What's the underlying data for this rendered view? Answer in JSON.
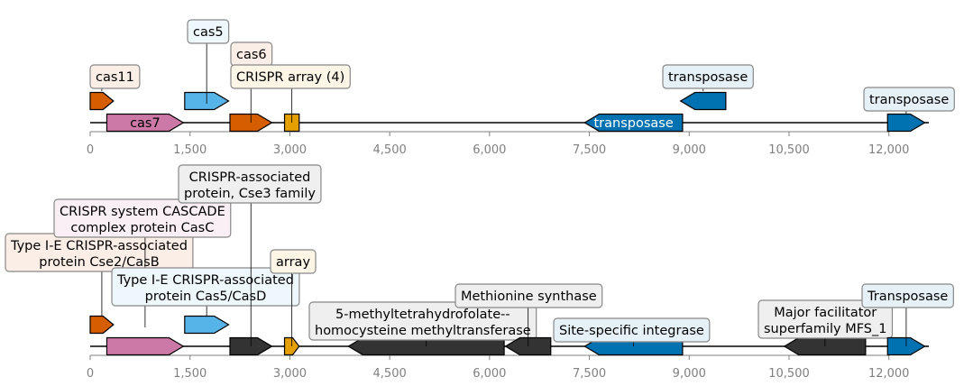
{
  "colors": {
    "cas11": "#d55e00",
    "cas7": "#cc79a7",
    "cas5": "#56b4e9",
    "cas6": "#d55e00",
    "crispr": "#e69f00",
    "transposase": "#0072b2",
    "other": "#333333",
    "backbone": "#000000",
    "tick": "#808080"
  },
  "axis": {
    "ticks": [
      "0",
      "1,500",
      "3,000",
      "4,500",
      "6,000",
      "7,500",
      "9,000",
      "10,500",
      "12,000"
    ],
    "tick_values": [
      0,
      1500,
      3000,
      4500,
      6000,
      7500,
      9000,
      10500,
      12000
    ],
    "xlim": [
      0,
      12600
    ]
  },
  "tracks": [
    {
      "name": "top",
      "genes": [
        {
          "label": "cas11",
          "start": 0,
          "end": 350,
          "strand": 1,
          "color": "#d55e00",
          "boxbg": "#fbeee6"
        },
        {
          "label": "cas7",
          "start": 250,
          "end": 1400,
          "strand": 1,
          "color": "#cc79a7",
          "inline": true
        },
        {
          "label": "cas5",
          "start": 1420,
          "end": 2080,
          "strand": 1,
          "color": "#56b4e9",
          "boxbg": "#eef7fc"
        },
        {
          "label": "cas6",
          "start": 2100,
          "end": 2730,
          "strand": 1,
          "color": "#d55e00",
          "boxbg": "#fbeee6"
        },
        {
          "label": "CRISPR array (4)",
          "start": 2920,
          "end": 3140,
          "strand": 0,
          "color": "#e69f00",
          "boxbg": "#fdf5e6"
        },
        {
          "label": "transposase",
          "start": 7430,
          "end": 8900,
          "strand": -1,
          "color": "#0072b2",
          "inline": true,
          "inline_color": "#ffffff"
        },
        {
          "label": "transposase",
          "start": 8870,
          "end": 9550,
          "strand": -1,
          "color": "#0072b2",
          "boxbg": "#e6f1f7"
        },
        {
          "label": "transposase",
          "start": 11980,
          "end": 12540,
          "strand": 1,
          "color": "#0072b2",
          "boxbg": "#e6f1f7"
        }
      ]
    },
    {
      "name": "bottom",
      "genes": [
        {
          "label": "Type I-E CRISPR-associated\nprotein Cse2/CasB",
          "start": 0,
          "end": 350,
          "strand": 1,
          "color": "#d55e00",
          "boxbg": "#fbeee6"
        },
        {
          "label": "CRISPR system CASCADE\ncomplex protein CasC",
          "start": 250,
          "end": 1400,
          "strand": 1,
          "color": "#cc79a7",
          "boxbg": "#f9eff5"
        },
        {
          "label": "Type I-E CRISPR-associated\nprotein Cas5/CasD",
          "start": 1420,
          "end": 2080,
          "strand": 1,
          "color": "#56b4e9",
          "boxbg": "#eef7fc"
        },
        {
          "label": "CRISPR-associated\nprotein, Cse3 family",
          "start": 2100,
          "end": 2730,
          "strand": 1,
          "color": "#333333",
          "boxbg": "#efefef"
        },
        {
          "label": "array",
          "start": 2920,
          "end": 3140,
          "strand": 1,
          "color": "#e69f00",
          "boxbg": "#fdf5e6"
        },
        {
          "label": "5-methyltetrahydrofolate--\nhomocysteine methyltransferase",
          "start": 3880,
          "end": 6220,
          "strand": -1,
          "color": "#333333",
          "boxbg": "#efefef"
        },
        {
          "label": "Methionine synthase",
          "start": 6240,
          "end": 6920,
          "strand": -1,
          "color": "#333333",
          "boxbg": "#efefef"
        },
        {
          "label": "Site-specific integrase",
          "start": 7430,
          "end": 8900,
          "strand": -1,
          "color": "#0072b2",
          "boxbg": "#e6f1f7"
        },
        {
          "label": "Major facilitator\nsuperfamily MFS_1",
          "start": 10430,
          "end": 11650,
          "strand": -1,
          "color": "#333333",
          "boxbg": "#efefef"
        },
        {
          "label": "Transposase",
          "start": 11980,
          "end": 12540,
          "strand": 1,
          "color": "#0072b2",
          "boxbg": "#e6f1f7"
        }
      ]
    }
  ]
}
